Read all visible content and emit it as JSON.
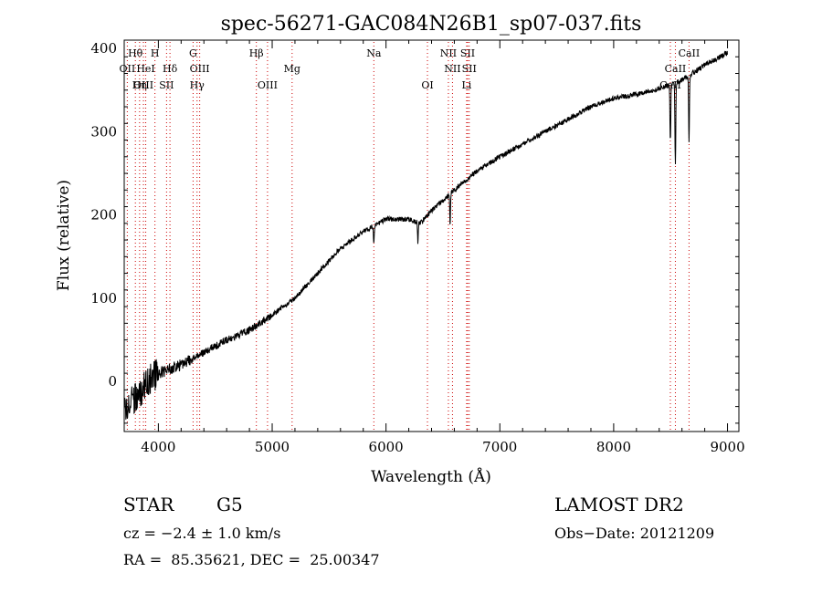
{
  "chart_data": {
    "type": "line",
    "title": "spec-56271-GAC084N26B1_sp07-037.fits",
    "xlabel": "Wavelength (Å)",
    "ylabel": "Flux (relative)",
    "xlim": [
      3700,
      9100
    ],
    "ylim": [
      -60,
      410
    ],
    "xticks": [
      4000,
      5000,
      6000,
      7000,
      8000,
      9000
    ],
    "yticks": [
      0,
      100,
      200,
      300,
      400
    ],
    "grid": false,
    "line_color": "#000000",
    "marker_color": "#cc0000",
    "lines": [
      {
        "label": "Hθ",
        "x": 3798,
        "row": 0
      },
      {
        "label": "OII",
        "x": 3727,
        "row": 1
      },
      {
        "label": "OIII",
        "x": 3869,
        "row": 2
      },
      {
        "label": "Hη",
        "x": 3835,
        "row": 2
      },
      {
        "label": "HeI",
        "x": 3889,
        "row": 1
      },
      {
        "label": "H",
        "x": 3970,
        "row": 0
      },
      {
        "label": "Hδ",
        "x": 4102,
        "row": 1
      },
      {
        "label": "SII",
        "x": 4072,
        "row": 2
      },
      {
        "label": "G",
        "x": 4305,
        "row": 0
      },
      {
        "label": "OIII",
        "x": 4363,
        "row": 1
      },
      {
        "label": "Hγ",
        "x": 4340,
        "row": 2
      },
      {
        "label": "Hβ",
        "x": 4861,
        "row": 0
      },
      {
        "label": "OIII",
        "x": 4959,
        "row": 2
      },
      {
        "label": "Mg",
        "x": 5175,
        "row": 1
      },
      {
        "label": "Na",
        "x": 5893,
        "row": 0
      },
      {
        "label": "OI",
        "x": 6364,
        "row": 2
      },
      {
        "label": "NII",
        "x": 6548,
        "row": 0
      },
      {
        "label": "NII",
        "x": 6584,
        "row": 1
      },
      {
        "label": "SII",
        "x": 6717,
        "row": 0
      },
      {
        "label": "SII",
        "x": 6731,
        "row": 1
      },
      {
        "label": "Li",
        "x": 6708,
        "row": 2
      },
      {
        "label": "CaII",
        "x": 8662,
        "row": 0
      },
      {
        "label": "CaII",
        "x": 8542,
        "row": 1
      },
      {
        "label": "CaII",
        "x": 8498,
        "row": 2
      }
    ],
    "spectrum_anchors": [
      [
        3700,
        -30
      ],
      [
        3800,
        -20
      ],
      [
        3900,
        0
      ],
      [
        4000,
        10
      ],
      [
        4100,
        15
      ],
      [
        4200,
        20
      ],
      [
        4300,
        27
      ],
      [
        4400,
        35
      ],
      [
        4600,
        50
      ],
      [
        4800,
        62
      ],
      [
        5000,
        80
      ],
      [
        5200,
        100
      ],
      [
        5400,
        130
      ],
      [
        5600,
        160
      ],
      [
        5800,
        180
      ],
      [
        6000,
        195
      ],
      [
        6100,
        195
      ],
      [
        6200,
        195
      ],
      [
        6300,
        190
      ],
      [
        6400,
        205
      ],
      [
        6600,
        230
      ],
      [
        6800,
        253
      ],
      [
        7000,
        270
      ],
      [
        7200,
        285
      ],
      [
        7400,
        300
      ],
      [
        7600,
        315
      ],
      [
        7800,
        330
      ],
      [
        8000,
        340
      ],
      [
        8200,
        345
      ],
      [
        8400,
        352
      ],
      [
        8600,
        362
      ],
      [
        8800,
        380
      ],
      [
        9000,
        395
      ]
    ],
    "absorption": [
      {
        "x": 8498,
        "depth": 70
      },
      {
        "x": 8542,
        "depth": 100
      },
      {
        "x": 8662,
        "depth": 80
      },
      {
        "x": 6563,
        "depth": 35
      },
      {
        "x": 5893,
        "depth": 20
      },
      {
        "x": 6280,
        "depth": 25
      }
    ]
  },
  "info": {
    "object": "STAR",
    "subclass": "G5",
    "survey": "LAMOST DR2",
    "cz": "cz = −2.4 ± 1.0 km/s",
    "obs_date": "Obs−Date: 20121209",
    "coords": "RA =  85.35621, DEC =  25.00347"
  }
}
